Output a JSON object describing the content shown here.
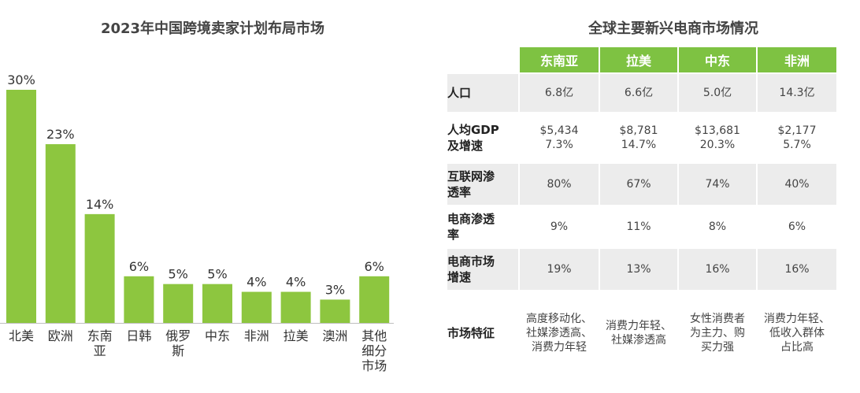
{
  "colors": {
    "bar": "#8dc63f",
    "header": "#7ec242",
    "stripe": "#ececec"
  },
  "chart_data": {
    "type": "bar",
    "title": "2023年中国跨境卖家计划布局市场",
    "categories": [
      "北美",
      "欧洲",
      "东南亚",
      "日韩",
      "俄罗斯",
      "中东",
      "非洲",
      "拉美",
      "澳洲",
      "其他细分市场"
    ],
    "category_lines": [
      [
        "北美"
      ],
      [
        "欧洲"
      ],
      [
        "东南",
        "亚"
      ],
      [
        "日韩"
      ],
      [
        "俄罗",
        "斯"
      ],
      [
        "中东"
      ],
      [
        "非洲"
      ],
      [
        "拉美"
      ],
      [
        "澳洲"
      ],
      [
        "其他",
        "细分",
        "市场"
      ]
    ],
    "values": [
      30,
      23,
      14,
      6,
      5,
      5,
      4,
      4,
      3,
      6
    ],
    "value_labels": [
      "30%",
      "23%",
      "14%",
      "6%",
      "5%",
      "5%",
      "4%",
      "4%",
      "3%",
      "6%"
    ],
    "unit": "%",
    "ylim": [
      0,
      30
    ],
    "grid": false,
    "legend": "none"
  },
  "table": {
    "title": "全球主要新兴电商市场情况",
    "columns": [
      "东南亚",
      "拉美",
      "中东",
      "非洲"
    ],
    "rows": [
      {
        "label": [
          "人口"
        ],
        "cells": [
          [
            "6.8亿"
          ],
          [
            "6.6亿"
          ],
          [
            "5.0亿"
          ],
          [
            "14.3亿"
          ]
        ]
      },
      {
        "label": [
          "人均GDP",
          "及增速"
        ],
        "cells": [
          [
            "$5,434",
            "7.3%"
          ],
          [
            "$8,781",
            "14.7%"
          ],
          [
            "$13,681",
            "20.3%"
          ],
          [
            "$2,177",
            "5.7%"
          ]
        ]
      },
      {
        "label": [
          "互联网渗",
          "透率"
        ],
        "cells": [
          [
            "80%"
          ],
          [
            "67%"
          ],
          [
            "74%"
          ],
          [
            "40%"
          ]
        ]
      },
      {
        "label": [
          "电商渗透",
          "率"
        ],
        "cells": [
          [
            "9%"
          ],
          [
            "11%"
          ],
          [
            "8%"
          ],
          [
            "6%"
          ]
        ]
      },
      {
        "label": [
          "电商市场",
          "增速"
        ],
        "cells": [
          [
            "19%"
          ],
          [
            "13%"
          ],
          [
            "16%"
          ],
          [
            "16%"
          ]
        ]
      },
      {
        "label": [
          "市场特征"
        ],
        "cells": [
          [
            "高度移动化、",
            "社媒渗透高、",
            "消费力年轻"
          ],
          [
            "消费力年轻、",
            "社媒渗透高"
          ],
          [
            "女性消费者",
            "为主力、购",
            "买力强"
          ],
          [
            "消费力年轻、",
            "低收入群体",
            "占比高"
          ]
        ]
      }
    ]
  }
}
